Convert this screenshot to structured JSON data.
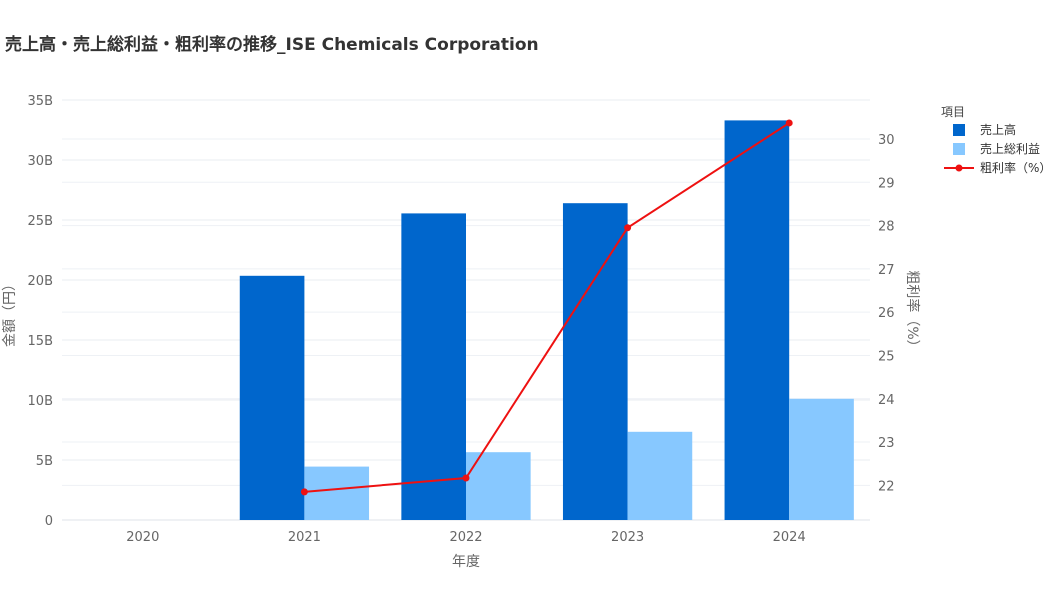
{
  "chart_data": {
    "type": "bar",
    "title": "売上高・売上総利益・粗利率の推移_ISE Chemicals Corporation",
    "xlabel": "年度",
    "ylabel": "金額（円）",
    "y2label": "粗利率（%）",
    "categories": [
      "2020",
      "2021",
      "2022",
      "2023",
      "2024"
    ],
    "ylim": [
      0,
      35000000000
    ],
    "y2lim": [
      21.2,
      30.9
    ],
    "yticks": [
      0,
      5000000000,
      10000000000,
      15000000000,
      20000000000,
      25000000000,
      30000000000,
      35000000000
    ],
    "ytick_labels": [
      "0",
      "5B",
      "10B",
      "15B",
      "20B",
      "25B",
      "30B",
      "35B"
    ],
    "y2ticks": [
      22,
      23,
      24,
      25,
      26,
      27,
      28,
      29,
      30
    ],
    "y2tick_labels": [
      "22",
      "23",
      "24",
      "25",
      "26",
      "27",
      "28",
      "29",
      "30"
    ],
    "grid": true,
    "legend_title": "項目",
    "legend_position": "top-right",
    "series": [
      {
        "name": "売上高",
        "type": "bar",
        "axis": "left",
        "color": "#0066cc",
        "values": [
          null,
          20350000000,
          25550000000,
          26400000000,
          33300000000
        ]
      },
      {
        "name": "売上総利益",
        "type": "bar",
        "axis": "left",
        "color": "#87c8ff",
        "values": [
          null,
          4450000000,
          5650000000,
          7350000000,
          10100000000
        ]
      },
      {
        "name": "粗利率（%）",
        "type": "line",
        "axis": "right",
        "color": "#ee1111",
        "values": [
          null,
          21.85,
          22.17,
          27.95,
          30.37
        ]
      }
    ]
  }
}
